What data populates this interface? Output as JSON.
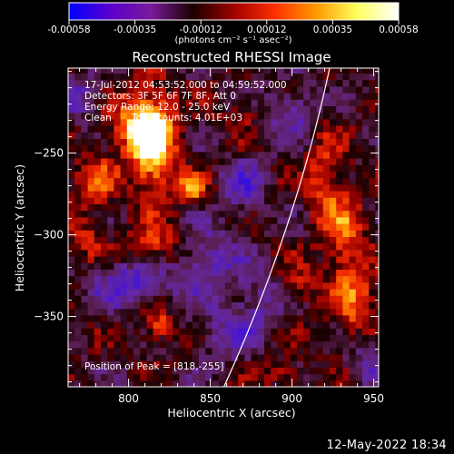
{
  "chart_data": {
    "type": "heatmap",
    "title": "Reconstructed RHESSI Image",
    "xlabel": "Heliocentric X (arcsec)",
    "ylabel": "Heliocentric Y (arcsec)",
    "xlim": [
      763,
      953
    ],
    "ylim": [
      -393,
      -198
    ],
    "x_ticks": [
      800,
      850,
      900,
      950
    ],
    "y_ticks": [
      -250,
      -300,
      -350
    ],
    "colorbar": {
      "ticks": [
        "-0.00058",
        "-0.00035",
        "-0.00012",
        "0.00012",
        "0.00035",
        "0.00058"
      ],
      "unit_label": "(photons cm⁻² s⁻¹ asec⁻²)",
      "range": [
        -0.00058,
        0.00058
      ],
      "colors": [
        "#0000ff",
        "#5a00cc",
        "#7a1a9a",
        "#1a0000",
        "#a00000",
        "#ff3000",
        "#ff9a00",
        "#ffff60",
        "#ffffff"
      ]
    },
    "annotations": {
      "time_range": "17-Jul-2012 04:53:52.000 to 04:59:52.000",
      "detectors": "Detectors: 3F 5F 6F 7F 8F, Att 0",
      "energy_range": "Energy Range: 12.0 - 25.0 keV",
      "method": "Clean",
      "total_counts": "Total counts: 4.01E+03",
      "peak": "Position of Peak = [818,-255]"
    },
    "peak": [
      818,
      -255
    ],
    "sources": [
      {
        "x": 815,
        "y": -245,
        "amp": 1.0,
        "sx": 10,
        "sy": 22
      },
      {
        "x": 805,
        "y": -232,
        "amp": 0.6,
        "sx": 12,
        "sy": 12
      },
      {
        "x": 838,
        "y": -272,
        "amp": 0.65,
        "sx": 7,
        "sy": 7
      },
      {
        "x": 820,
        "y": -307,
        "amp": 0.55,
        "sx": 14,
        "sy": 9
      },
      {
        "x": 780,
        "y": -265,
        "amp": 0.45,
        "sx": 10,
        "sy": 12
      },
      {
        "x": 818,
        "y": -355,
        "amp": 0.6,
        "sx": 7,
        "sy": 7
      },
      {
        "x": 775,
        "y": -300,
        "amp": 0.35,
        "sx": 8,
        "sy": 10
      },
      {
        "x": 920,
        "y": -265,
        "amp": 0.45,
        "sx": 8,
        "sy": 20
      },
      {
        "x": 932,
        "y": -302,
        "amp": 0.55,
        "sx": 9,
        "sy": 22
      },
      {
        "x": 940,
        "y": -343,
        "amp": 0.5,
        "sx": 10,
        "sy": 15
      },
      {
        "x": 905,
        "y": -330,
        "amp": 0.35,
        "sx": 7,
        "sy": 9
      },
      {
        "x": 895,
        "y": -385,
        "amp": 0.4,
        "sx": 8,
        "sy": 6
      },
      {
        "x": 870,
        "y": -225,
        "amp": 0.3,
        "sx": 8,
        "sy": 6
      },
      {
        "x": 845,
        "y": -315,
        "amp": -0.55,
        "sx": 16,
        "sy": 14
      },
      {
        "x": 800,
        "y": -330,
        "amp": -0.65,
        "sx": 14,
        "sy": 10
      },
      {
        "x": 870,
        "y": -270,
        "amp": -0.5,
        "sx": 10,
        "sy": 12
      },
      {
        "x": 860,
        "y": -360,
        "amp": -0.4,
        "sx": 14,
        "sy": 12
      },
      {
        "x": 770,
        "y": -215,
        "amp": -0.45,
        "sx": 8,
        "sy": 10
      },
      {
        "x": 900,
        "y": -225,
        "amp": -0.5,
        "sx": 10,
        "sy": 10
      },
      {
        "x": 950,
        "y": -375,
        "amp": -0.4,
        "sx": 10,
        "sy": 12
      },
      {
        "x": 880,
        "y": -340,
        "amp": -0.35,
        "sx": 10,
        "sy": 12
      }
    ],
    "limb": {
      "center": [
        0,
        0
      ],
      "radius": 944,
      "color": "#ffffff"
    }
  },
  "footer": {
    "timestamp": "12-May-2022 18:34"
  }
}
